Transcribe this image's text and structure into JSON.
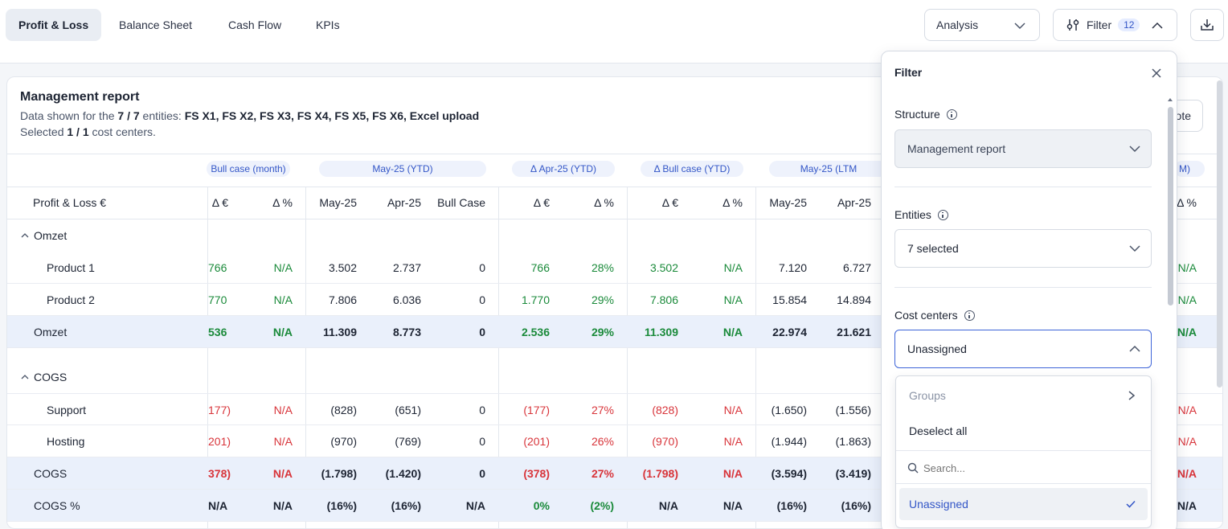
{
  "tabs": [
    "Profit & Loss",
    "Balance Sheet",
    "Cash Flow",
    "KPIs"
  ],
  "toolbar": {
    "analysis_label": "Analysis",
    "filter_label": "Filter",
    "filter_count": "12"
  },
  "report": {
    "title": "Management report",
    "line1_prefix": "Data shown for the ",
    "line1_count": "7 / 7",
    "line1_mid": " entities: ",
    "line1_entities": "FS X1, FS X2, FS X3, FS X4, FS X5, FS X6, Excel upload",
    "line2_prefix": "Selected ",
    "line2_count": "1 / 1",
    "line2_suffix": " cost centers.",
    "note_button": "ote"
  },
  "table": {
    "row_header": "Profit & Loss €",
    "group_headers": [
      "Bull case (month)",
      "May-25 (YTD)",
      "Δ Apr-25 (YTD)",
      "Δ Bull case (YTD)",
      "May-25 (LTM",
      "M)"
    ],
    "columns": [
      "Δ €",
      "Δ %",
      "May-25",
      "Apr-25",
      "Bull Case",
      "Δ €",
      "Δ %",
      "Δ €",
      "Δ %",
      "May-25",
      "Apr-25",
      "Δ %"
    ],
    "rows": [
      {
        "type": "section",
        "label": "Omzet"
      },
      {
        "type": "item",
        "label": "Product 1",
        "values": [
          "766",
          "N/A",
          "3.502",
          "2.737",
          "0",
          "766",
          "28%",
          "3.502",
          "N/A",
          "7.120",
          "6.727",
          "N/A"
        ],
        "tones": [
          "pos",
          "pos",
          "",
          "",
          "",
          "pos",
          "pos",
          "pos",
          "pos",
          "",
          "",
          "pos"
        ]
      },
      {
        "type": "item",
        "label": "Product 2",
        "values": [
          "770",
          "N/A",
          "7.806",
          "6.036",
          "0",
          "1.770",
          "29%",
          "7.806",
          "N/A",
          "15.854",
          "14.894",
          "N/A"
        ],
        "tones": [
          "pos",
          "pos",
          "",
          "",
          "",
          "pos",
          "pos",
          "pos",
          "pos",
          "",
          "",
          "pos"
        ]
      },
      {
        "type": "total",
        "label": "Omzet",
        "values": [
          "536",
          "N/A",
          "11.309",
          "8.773",
          "0",
          "2.536",
          "29%",
          "11.309",
          "N/A",
          "22.974",
          "21.621",
          "N/A"
        ],
        "tones": [
          "pos",
          "pos",
          "",
          "",
          "",
          "pos",
          "pos",
          "pos",
          "pos",
          "",
          "",
          "pos"
        ]
      },
      {
        "type": "spacer"
      },
      {
        "type": "section",
        "label": "COGS"
      },
      {
        "type": "item",
        "label": "Support",
        "values": [
          "177)",
          "N/A",
          "(828)",
          "(651)",
          "0",
          "(177)",
          "27%",
          "(828)",
          "N/A",
          "(1.650)",
          "(1.556)",
          "N/A"
        ],
        "tones": [
          "neg",
          "neg",
          "",
          "",
          "",
          "neg",
          "neg",
          "neg",
          "neg",
          "",
          "",
          "neg"
        ]
      },
      {
        "type": "item",
        "label": "Hosting",
        "values": [
          "201)",
          "N/A",
          "(970)",
          "(769)",
          "0",
          "(201)",
          "26%",
          "(970)",
          "N/A",
          "(1.944)",
          "(1.863)",
          "N/A"
        ],
        "tones": [
          "neg",
          "neg",
          "",
          "",
          "",
          "neg",
          "neg",
          "neg",
          "neg",
          "",
          "",
          "neg"
        ]
      },
      {
        "type": "total",
        "label": "COGS",
        "values": [
          "378)",
          "N/A",
          "(1.798)",
          "(1.420)",
          "0",
          "(378)",
          "27%",
          "(1.798)",
          "N/A",
          "(3.594)",
          "(3.419)",
          "N/A"
        ],
        "tones": [
          "neg",
          "neg",
          "",
          "",
          "",
          "neg",
          "neg",
          "neg",
          "neg",
          "",
          "",
          "neg"
        ]
      },
      {
        "type": "total",
        "label": "COGS %",
        "values": [
          "N/A",
          "N/A",
          "(16%)",
          "(16%)",
          "N/A",
          "0%",
          "(2%)",
          "N/A",
          "N/A",
          "(16%)",
          "(16%)",
          "N/A"
        ],
        "tones": [
          "",
          "",
          "",
          "",
          "",
          "pos",
          "pos",
          "",
          "",
          "",
          "",
          ""
        ]
      }
    ]
  },
  "filter": {
    "title": "Filter",
    "structure_label": "Structure",
    "structure_value": "Management report",
    "entities_label": "Entities",
    "entities_value": "7 selected",
    "cost_centers_label": "Cost centers",
    "cost_centers_value": "Unassigned",
    "dropdown": {
      "groups": "Groups",
      "deselect_all": "Deselect all",
      "search_placeholder": "Search...",
      "option": "Unassigned"
    }
  },
  "colors": {
    "accent": "#3d64d8",
    "positive": "#1a8a3a",
    "negative": "#d8343a",
    "highlight_row": "#eaf0fb"
  }
}
